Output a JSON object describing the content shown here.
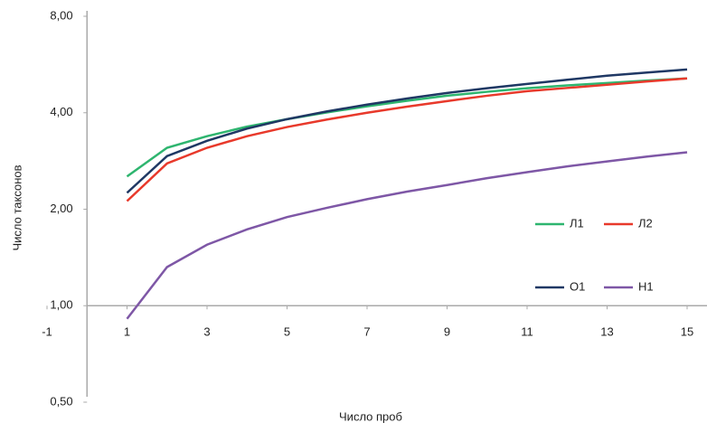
{
  "chart_data": {
    "type": "line",
    "y_label": "Число таксонов",
    "x_label": "Число проб",
    "x": [
      1,
      2,
      3,
      4,
      5,
      6,
      7,
      8,
      9,
      10,
      11,
      12,
      13,
      14,
      15
    ],
    "series": [
      {
        "name": "Л1",
        "color": "#2eb56f",
        "values": [
          2.53,
          3.11,
          3.38,
          3.62,
          3.82,
          4.01,
          4.19,
          4.36,
          4.52,
          4.65,
          4.77,
          4.87,
          4.95,
          5.04,
          5.12
        ]
      },
      {
        "name": "Л2",
        "color": "#e8392b",
        "values": [
          2.12,
          2.78,
          3.11,
          3.38,
          3.61,
          3.81,
          4.0,
          4.18,
          4.35,
          4.52,
          4.67,
          4.78,
          4.89,
          5.01,
          5.12
        ]
      },
      {
        "name": "О1",
        "color": "#1f3864",
        "values": [
          2.25,
          2.93,
          3.27,
          3.57,
          3.82,
          4.04,
          4.24,
          4.43,
          4.61,
          4.77,
          4.92,
          5.07,
          5.22,
          5.34,
          5.46
        ]
      },
      {
        "name": "Н1",
        "color": "#7e57a6",
        "values": [
          0.91,
          1.32,
          1.55,
          1.73,
          1.89,
          2.02,
          2.15,
          2.27,
          2.38,
          2.5,
          2.61,
          2.72,
          2.82,
          2.92,
          3.01
        ]
      }
    ],
    "xlim": [
      -1,
      15
    ],
    "xticks": [
      -1,
      1,
      3,
      5,
      7,
      9,
      11,
      13,
      15
    ],
    "ylim": [
      0.5,
      8
    ],
    "y_log_base": 2,
    "yticks": [
      {
        "value": 0.5,
        "label": "0,50"
      },
      {
        "value": 1,
        "label": "1,00"
      },
      {
        "value": 2,
        "label": "2,00"
      },
      {
        "value": 4,
        "label": "4,00"
      },
      {
        "value": 8,
        "label": "8,00"
      }
    ],
    "x_axis_crosses": 1,
    "y_axis_crosses": 0,
    "legend": "right"
  }
}
